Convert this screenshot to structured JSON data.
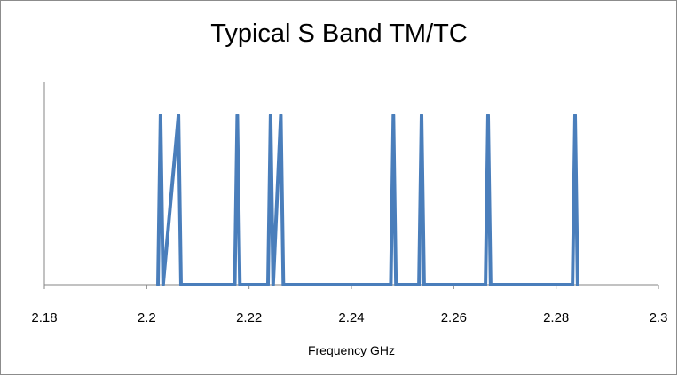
{
  "colors": {
    "series": "#4a7ebb",
    "axis": "#868686"
  },
  "chart_data": {
    "type": "line",
    "title": "Typical S Band TM/TC",
    "xlabel": "Frequency GHz",
    "ylabel": "",
    "xlim": [
      2.18,
      2.3
    ],
    "ylim": [
      0,
      1
    ],
    "xticks": [
      {
        "value": 2.18,
        "label": "2.18"
      },
      {
        "value": 2.2,
        "label": "2.2"
      },
      {
        "value": 2.22,
        "label": "2.22"
      },
      {
        "value": 2.24,
        "label": "2.24"
      },
      {
        "value": 2.26,
        "label": "2.26"
      },
      {
        "value": 2.28,
        "label": "2.28"
      },
      {
        "value": 2.3,
        "label": "2.3"
      }
    ],
    "y_axis_visible": true,
    "y_tick_labels_visible": false,
    "grid": false,
    "legend": "none",
    "series": [
      {
        "values_x": [
          2.2022,
          2.2027,
          2.2032,
          2.2062,
          2.2067,
          2.2172,
          2.2177,
          2.2182,
          2.2237,
          2.2242,
          2.2247,
          2.2262,
          2.2267,
          2.2477,
          2.2482,
          2.2487,
          2.2532,
          2.2537,
          2.2542,
          2.2662,
          2.2667,
          2.2672,
          2.2832,
          2.2837,
          2.2842
        ],
        "values_y": [
          0,
          1,
          0,
          1,
          0,
          0,
          1,
          0,
          0,
          1,
          0,
          1,
          0,
          0,
          1,
          0,
          0,
          1,
          0,
          0,
          1,
          0,
          0,
          1,
          0
        ]
      }
    ]
  }
}
